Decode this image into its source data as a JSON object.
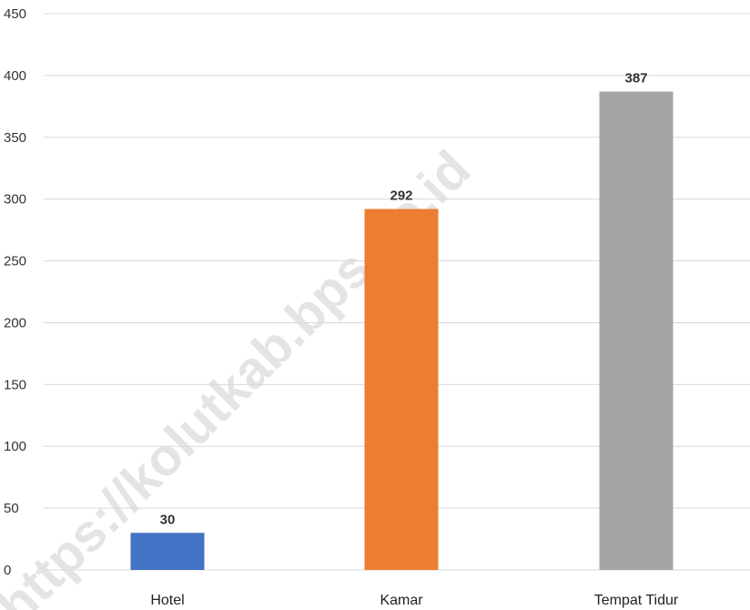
{
  "chart_data": {
    "type": "bar",
    "categories": [
      "Hotel",
      "Kamar",
      "Tempat Tidur"
    ],
    "values": [
      30,
      292,
      387
    ],
    "data_labels": [
      "30",
      "292",
      "387"
    ],
    "colors": [
      "#4472C4",
      "#ED7D31",
      "#A5A5A5"
    ],
    "ylim": [
      0,
      450
    ],
    "yticks": [
      0,
      50,
      100,
      150,
      200,
      250,
      300,
      350,
      400,
      450
    ],
    "grid": true,
    "legend": "none"
  },
  "watermark": "https://kolutkab.bps.go.id"
}
